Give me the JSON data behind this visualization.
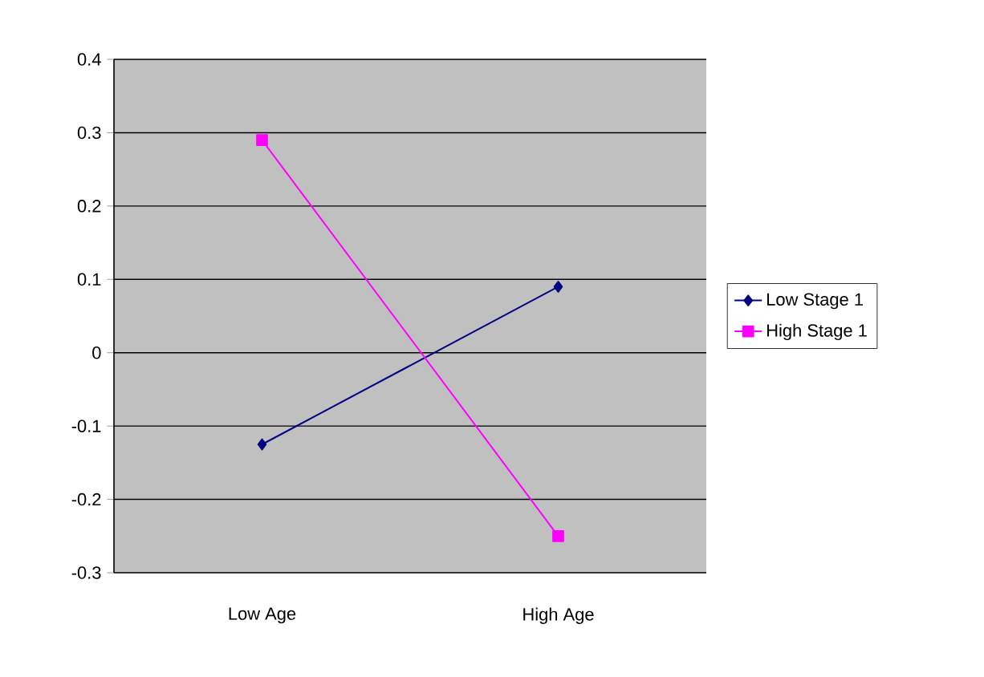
{
  "chart_data": {
    "type": "line",
    "categories": [
      "Low Age",
      "High Age"
    ],
    "series": [
      {
        "name": "Low Stage 1",
        "color": "#000080",
        "marker": "diamond",
        "values": [
          -0.125,
          0.09
        ]
      },
      {
        "name": "High Stage 1",
        "color": "#ff00ff",
        "marker": "square",
        "values": [
          0.29,
          -0.25
        ]
      }
    ],
    "ylim": [
      -0.3,
      0.4
    ],
    "yticks": [
      -0.3,
      -0.2,
      -0.1,
      0,
      0.1,
      0.2,
      0.3,
      0.4
    ],
    "grid": "y",
    "legend": "right"
  }
}
